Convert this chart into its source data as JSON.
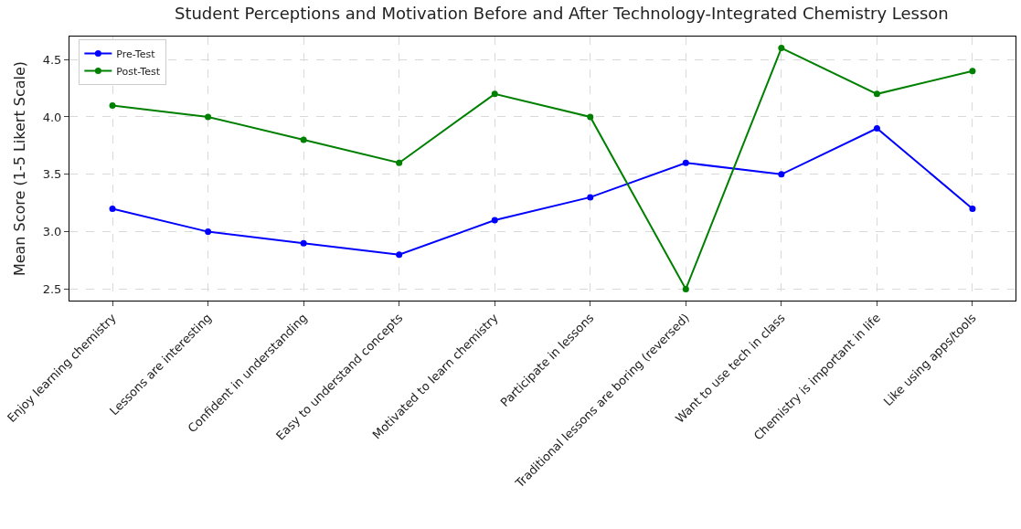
{
  "chart_data": {
    "type": "line",
    "title": "Student Perceptions and Motivation Before and After Technology-Integrated Chemistry Lesson",
    "ylabel": "Mean Score (1-5 Likert Scale)",
    "categories": [
      "Enjoy learning chemistry",
      "Lessons are interesting",
      "Confident in understanding",
      "Easy to understand concepts",
      "Motivated to learn chemistry",
      "Participate in lessons",
      "Traditional lessons are boring (reversed)",
      "Want to use tech in class",
      "Chemistry is important in life",
      "Like using apps/tools"
    ],
    "series": [
      {
        "name": "Pre-Test",
        "color": "#0000ff",
        "values": [
          3.2,
          3.0,
          2.9,
          2.8,
          3.1,
          3.3,
          3.6,
          3.5,
          3.9,
          3.2
        ]
      },
      {
        "name": "Post-Test",
        "color": "#008000",
        "values": [
          4.1,
          4.0,
          3.8,
          3.6,
          4.2,
          4.0,
          2.5,
          4.6,
          4.2,
          4.4
        ]
      }
    ],
    "ylim": [
      2.4,
      4.7
    ],
    "yticks": [
      2.5,
      {
        "value": 3,
        "label": "3.0"
      },
      3.5,
      {
        "value": 4,
        "label": "4.0"
      },
      4.5
    ],
    "grid": true,
    "legend": "top left",
    "marker": "circle",
    "line_style": "solid"
  }
}
